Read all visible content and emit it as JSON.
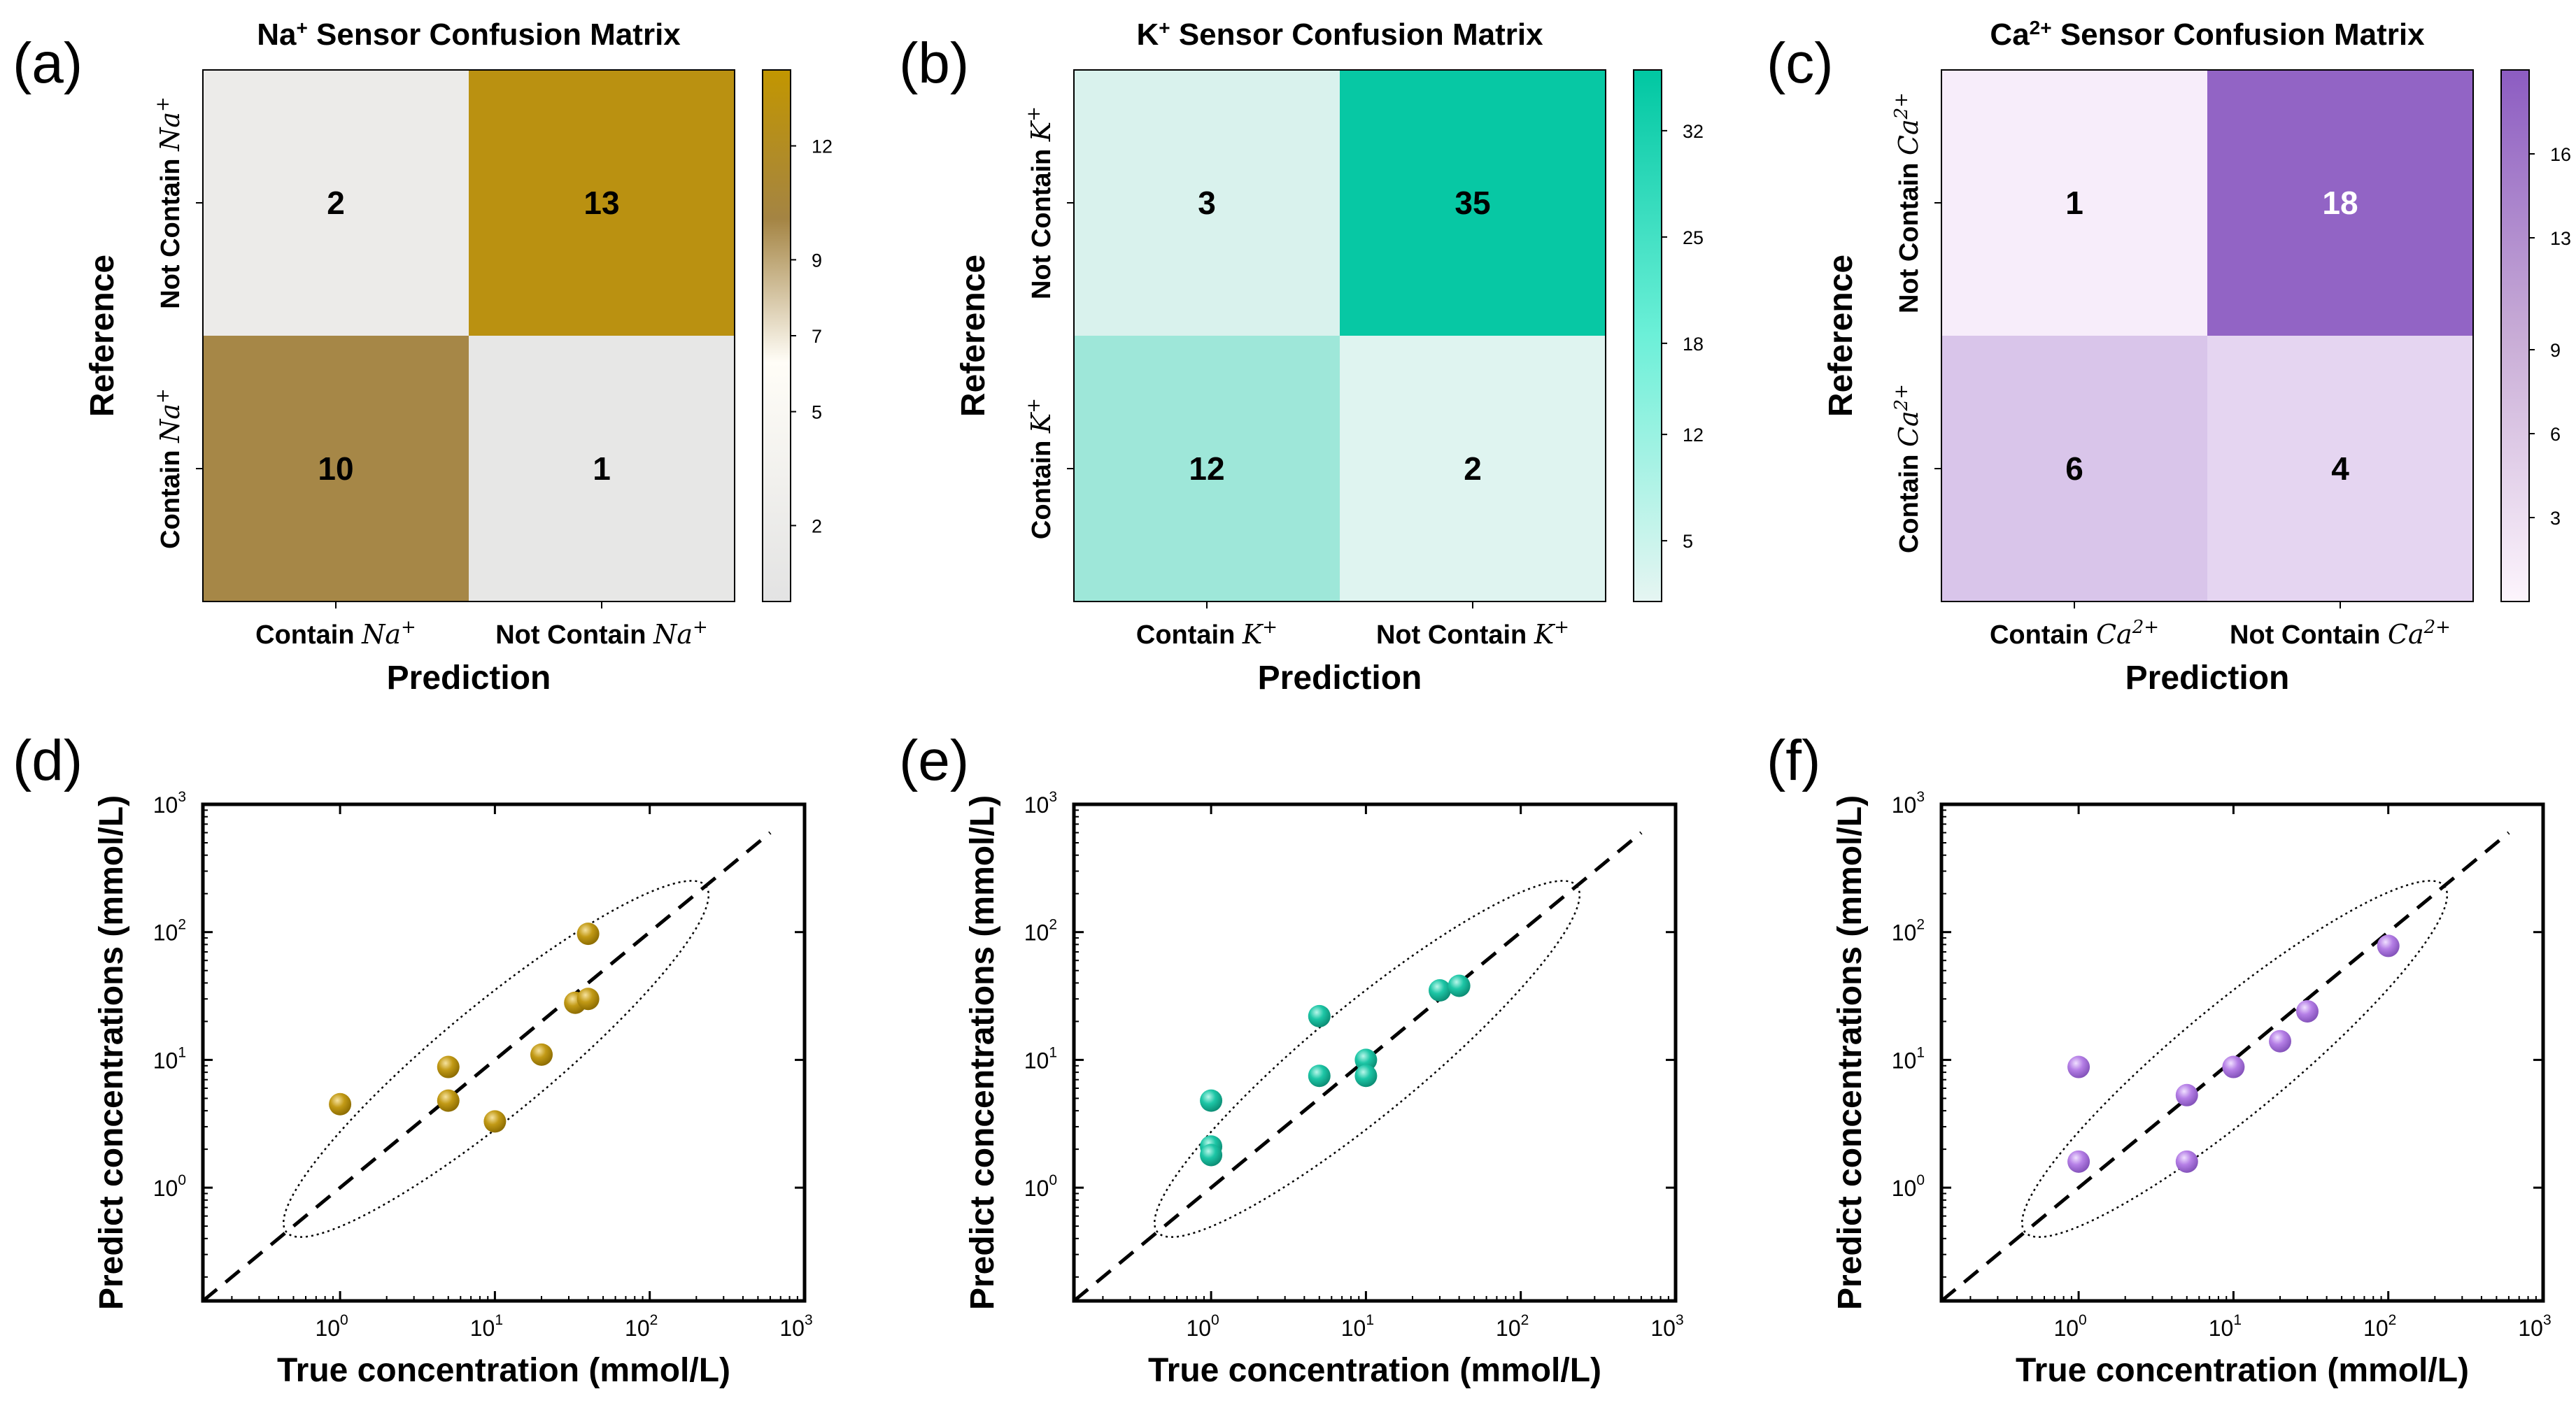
{
  "panels": {
    "a": "(a)",
    "b": "(b)",
    "c": "(c)",
    "d": "(d)",
    "e": "(e)",
    "f": "(f)"
  },
  "chart_data": [
    {
      "id": "a",
      "type": "heatmap",
      "title_prefix": "Na",
      "title_sup": "+",
      "title_suffix": " Sensor Confusion Matrix",
      "xlabel": "Prediction",
      "ylabel": "Reference",
      "ion": "Na",
      "ion_charge": "+",
      "x_categories": [
        "Contain",
        "Not Contain"
      ],
      "y_categories": [
        "Not Contain",
        "Contain"
      ],
      "values": [
        [
          2,
          13
        ],
        [
          10,
          1
        ]
      ],
      "colorbar": {
        "min": 0,
        "max": 14,
        "ticks": [
          2,
          5,
          7,
          9,
          12
        ]
      },
      "colors": {
        "low": "#e3e3e3",
        "mid": "#fffdf7",
        "high": "#c29600",
        "midhigh": "#a48443"
      }
    },
    {
      "id": "b",
      "type": "heatmap",
      "title_prefix": "K",
      "title_sup": "+",
      "title_suffix": " Sensor Confusion Matrix",
      "xlabel": "Prediction",
      "ylabel": "Reference",
      "ion": "K",
      "ion_charge": "+",
      "x_categories": [
        "Contain",
        "Not Contain"
      ],
      "y_categories": [
        "Not Contain",
        "Contain"
      ],
      "values": [
        [
          3,
          35
        ],
        [
          12,
          2
        ]
      ],
      "colorbar": {
        "min": 1,
        "max": 36,
        "ticks": [
          5,
          12,
          18,
          25,
          32
        ]
      },
      "colors": {
        "low": "#e6f5f2",
        "high": "#00c7a2"
      }
    },
    {
      "id": "c",
      "type": "heatmap",
      "title_prefix": "Ca",
      "title_sup": "2+",
      "title_suffix": " Sensor Confusion Matrix",
      "xlabel": "Prediction",
      "ylabel": "Reference",
      "ion": "Ca",
      "ion_charge": "2+",
      "x_categories": [
        "Contain",
        "Not Contain"
      ],
      "y_categories": [
        "Not Contain",
        "Contain"
      ],
      "values": [
        [
          1,
          18
        ],
        [
          6,
          4
        ]
      ],
      "colorbar": {
        "min": 0,
        "max": 19,
        "ticks": [
          3,
          6,
          9,
          13,
          16
        ]
      },
      "colors": {
        "low": "#fdf5fd",
        "high": "#8c5cc2"
      }
    },
    {
      "id": "d",
      "type": "scatter",
      "xlabel": "True concentration (mmol/L)",
      "ylabel": "Predict concentrations (mmol/L)",
      "xscale": "log",
      "yscale": "log",
      "xlim": [
        0.13,
        1000
      ],
      "ylim": [
        0.13,
        1000
      ],
      "ticks": [
        "10",
        "10",
        "10",
        "10"
      ],
      "tick_exponents": [
        "0",
        "1",
        "2",
        "3"
      ],
      "tick_values": [
        1,
        10,
        100,
        1000
      ],
      "color": "#c29a16",
      "points": [
        {
          "x": 1,
          "y": 4.5
        },
        {
          "x": 5,
          "y": 8.8
        },
        {
          "x": 5,
          "y": 4.8
        },
        {
          "x": 10,
          "y": 3.3
        },
        {
          "x": 20,
          "y": 11
        },
        {
          "x": 33,
          "y": 28
        },
        {
          "x": 40,
          "y": 30
        },
        {
          "x": 40,
          "y": 97
        }
      ],
      "reference_line": "y=x",
      "ellipse": {
        "from": [
          0.45,
          0.45
        ],
        "to": [
          230,
          230
        ]
      }
    },
    {
      "id": "e",
      "type": "scatter",
      "xlabel": "True concentration (mmol/L)",
      "ylabel": "Predict concentrations (mmol/L)",
      "xscale": "log",
      "yscale": "log",
      "xlim": [
        0.13,
        1000
      ],
      "ylim": [
        0.13,
        1000
      ],
      "ticks": [
        "10",
        "10",
        "10",
        "10"
      ],
      "tick_exponents": [
        "0",
        "1",
        "2",
        "3"
      ],
      "tick_values": [
        1,
        10,
        100,
        1000
      ],
      "color": "#1dc6a6",
      "points": [
        {
          "x": 1,
          "y": 4.8
        },
        {
          "x": 1,
          "y": 2.1
        },
        {
          "x": 1,
          "y": 1.8
        },
        {
          "x": 5,
          "y": 22
        },
        {
          "x": 5,
          "y": 7.5
        },
        {
          "x": 10,
          "y": 10
        },
        {
          "x": 10,
          "y": 7.5
        },
        {
          "x": 30,
          "y": 35
        },
        {
          "x": 40,
          "y": 38
        }
      ],
      "reference_line": "y=x",
      "ellipse": {
        "from": [
          0.45,
          0.45
        ],
        "to": [
          230,
          230
        ]
      }
    },
    {
      "id": "f",
      "type": "scatter",
      "xlabel": "True concentration (mmol/L)",
      "ylabel": "Predict concentrations (mmol/L)",
      "xscale": "log",
      "yscale": "log",
      "xlim": [
        0.13,
        1000
      ],
      "ylim": [
        0.13,
        1000
      ],
      "ticks": [
        "10",
        "10",
        "10",
        "10"
      ],
      "tick_exponents": [
        "0",
        "1",
        "2",
        "3"
      ],
      "tick_values": [
        1,
        10,
        100,
        1000
      ],
      "color": "#b57fe6",
      "points": [
        {
          "x": 1,
          "y": 8.8
        },
        {
          "x": 1,
          "y": 1.6
        },
        {
          "x": 5,
          "y": 5.3
        },
        {
          "x": 5,
          "y": 1.6
        },
        {
          "x": 10,
          "y": 8.8
        },
        {
          "x": 20,
          "y": 14
        },
        {
          "x": 30,
          "y": 24
        },
        {
          "x": 100,
          "y": 78
        }
      ],
      "reference_line": "y=x",
      "ellipse": {
        "from": [
          0.45,
          0.45
        ],
        "to": [
          230,
          230
        ]
      }
    }
  ]
}
